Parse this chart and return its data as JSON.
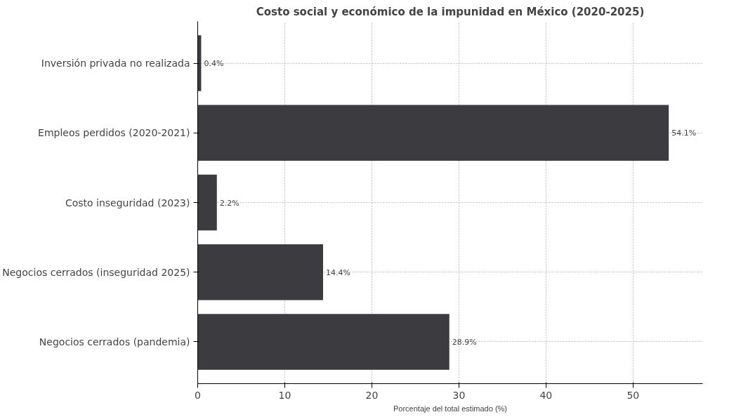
{
  "chart_data": {
    "type": "bar",
    "orientation": "horizontal",
    "title": "Costo social y económico de la impunidad en México (2020-2025)",
    "xlabel": "Porcentaje del total estimado (%)",
    "categories": [
      "Inversión privada no realizada",
      "Empleos perdidos (2020-2021)",
      "Costo inseguridad (2023)",
      "Negocios cerrados (inseguridad 2025)",
      "Negocios cerrados (pandemia)"
    ],
    "values": [
      0.4,
      54.1,
      2.2,
      14.4,
      28.9
    ],
    "value_labels": [
      "0.4%",
      "54.1%",
      "2.2%",
      "14.4%",
      "28.9%"
    ],
    "color": "#3b3b40",
    "xlim": [
      0,
      58
    ],
    "xticks": [
      0,
      10,
      20,
      30,
      40,
      50
    ],
    "grid": true
  }
}
